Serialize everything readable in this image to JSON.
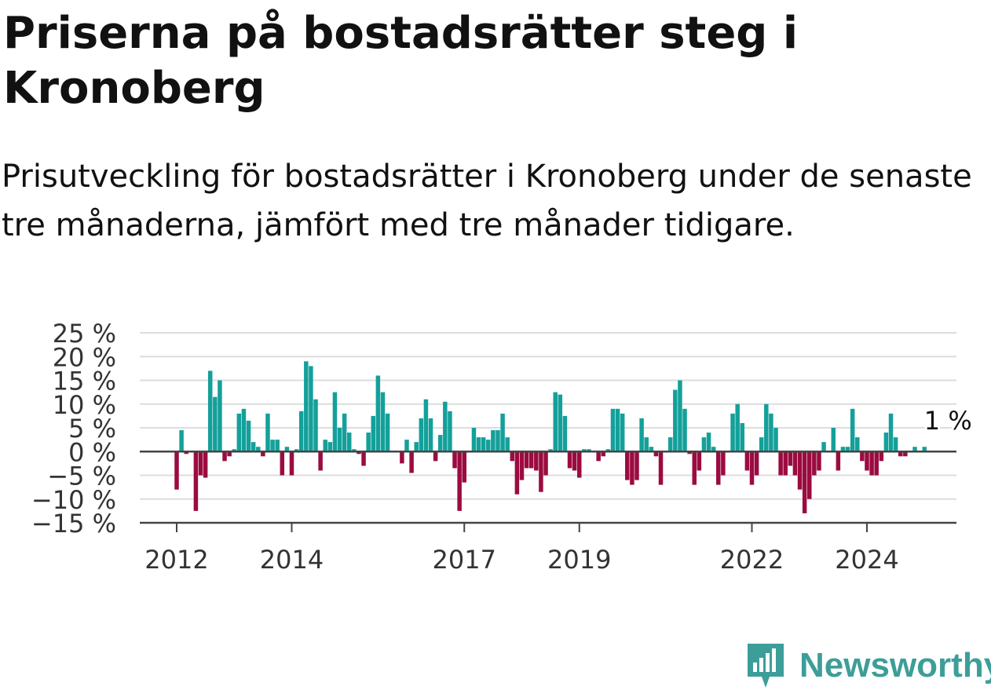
{
  "title": "Priserna på bostadsrätter steg i Kronoberg",
  "subtitle": "Prisutveckling för bostadsrätter i Kronoberg under de senaste tre månaderna, jämfört med tre månader tidigare.",
  "logo": {
    "text": "Newsworthy",
    "icon": "newsworthy-logo-icon"
  },
  "colors": {
    "positive": "#14a09a",
    "negative": "#9b0b40",
    "grid": "#dddddd",
    "axis": "#444444"
  },
  "chart_data": {
    "type": "bar",
    "title": "Priserna på bostadsrätter steg i Kronoberg",
    "xlabel": "",
    "ylabel": "",
    "ylim": [
      -15,
      25
    ],
    "y_ticks": [
      25,
      20,
      15,
      10,
      5,
      0,
      -5,
      -10,
      -15
    ],
    "y_tick_labels": [
      "25 %",
      "20 %",
      "15 %",
      "10 %",
      "5 %",
      "0 %",
      "−5 %",
      "−10 %",
      "−15 %"
    ],
    "x_tick_labels": [
      "2012",
      "2014",
      "2017",
      "2019",
      "2022",
      "2024"
    ],
    "x_tick_positions": [
      2012.0,
      2014.0,
      2017.0,
      2019.0,
      2022.0,
      2024.0
    ],
    "x_start": "2011-08",
    "x_end": "2025-11",
    "grid": true,
    "last_value_label": "1 %",
    "series": [
      {
        "start_month": "2012-01",
        "values": [
          -8,
          4.5,
          -0.5,
          0,
          -12.5,
          -5,
          -5.5,
          17,
          11.5,
          15,
          -2,
          -1,
          0.5,
          8,
          9,
          6.5,
          2,
          1,
          -1,
          8,
          2.5,
          2.5,
          -5,
          1,
          -5,
          0.5,
          8.5,
          19,
          18,
          11,
          -4,
          2.5,
          2,
          12.5,
          5,
          8,
          4,
          0.5,
          -0.5,
          -3,
          4,
          7.5,
          16,
          12.5,
          8,
          0,
          0,
          -2.5,
          2.5,
          -4.5,
          2,
          7,
          11,
          7,
          -2,
          3.5,
          10.5,
          8.5,
          -3.5,
          -12.5,
          -6.5,
          0,
          5,
          3,
          3,
          2.5,
          4.5,
          4.5,
          8,
          3,
          -2,
          -9,
          -6,
          -3.5,
          -3.5,
          -4,
          -8.5,
          -5,
          0.5,
          12.5,
          12,
          7.5,
          -3.5,
          -4,
          -5.5,
          0.5,
          0.5,
          0,
          -2,
          -1,
          0.5,
          9,
          9,
          8,
          -6,
          -7,
          -6,
          7,
          3,
          1,
          -1,
          -7,
          0,
          3,
          13,
          15,
          9,
          -0.5,
          -7,
          -4,
          3,
          4,
          1,
          -7,
          -5,
          0,
          8,
          10,
          6,
          -4,
          -7,
          -5,
          3,
          10,
          8,
          5,
          -5,
          -5,
          -3,
          -5,
          -8,
          -13,
          -10,
          -5,
          -4,
          2,
          0,
          5,
          -4,
          1,
          1,
          9,
          3,
          -2,
          -4,
          -5,
          -5,
          -2,
          4,
          8,
          3,
          -1,
          -1,
          0,
          1,
          0,
          1
        ]
      }
    ]
  }
}
